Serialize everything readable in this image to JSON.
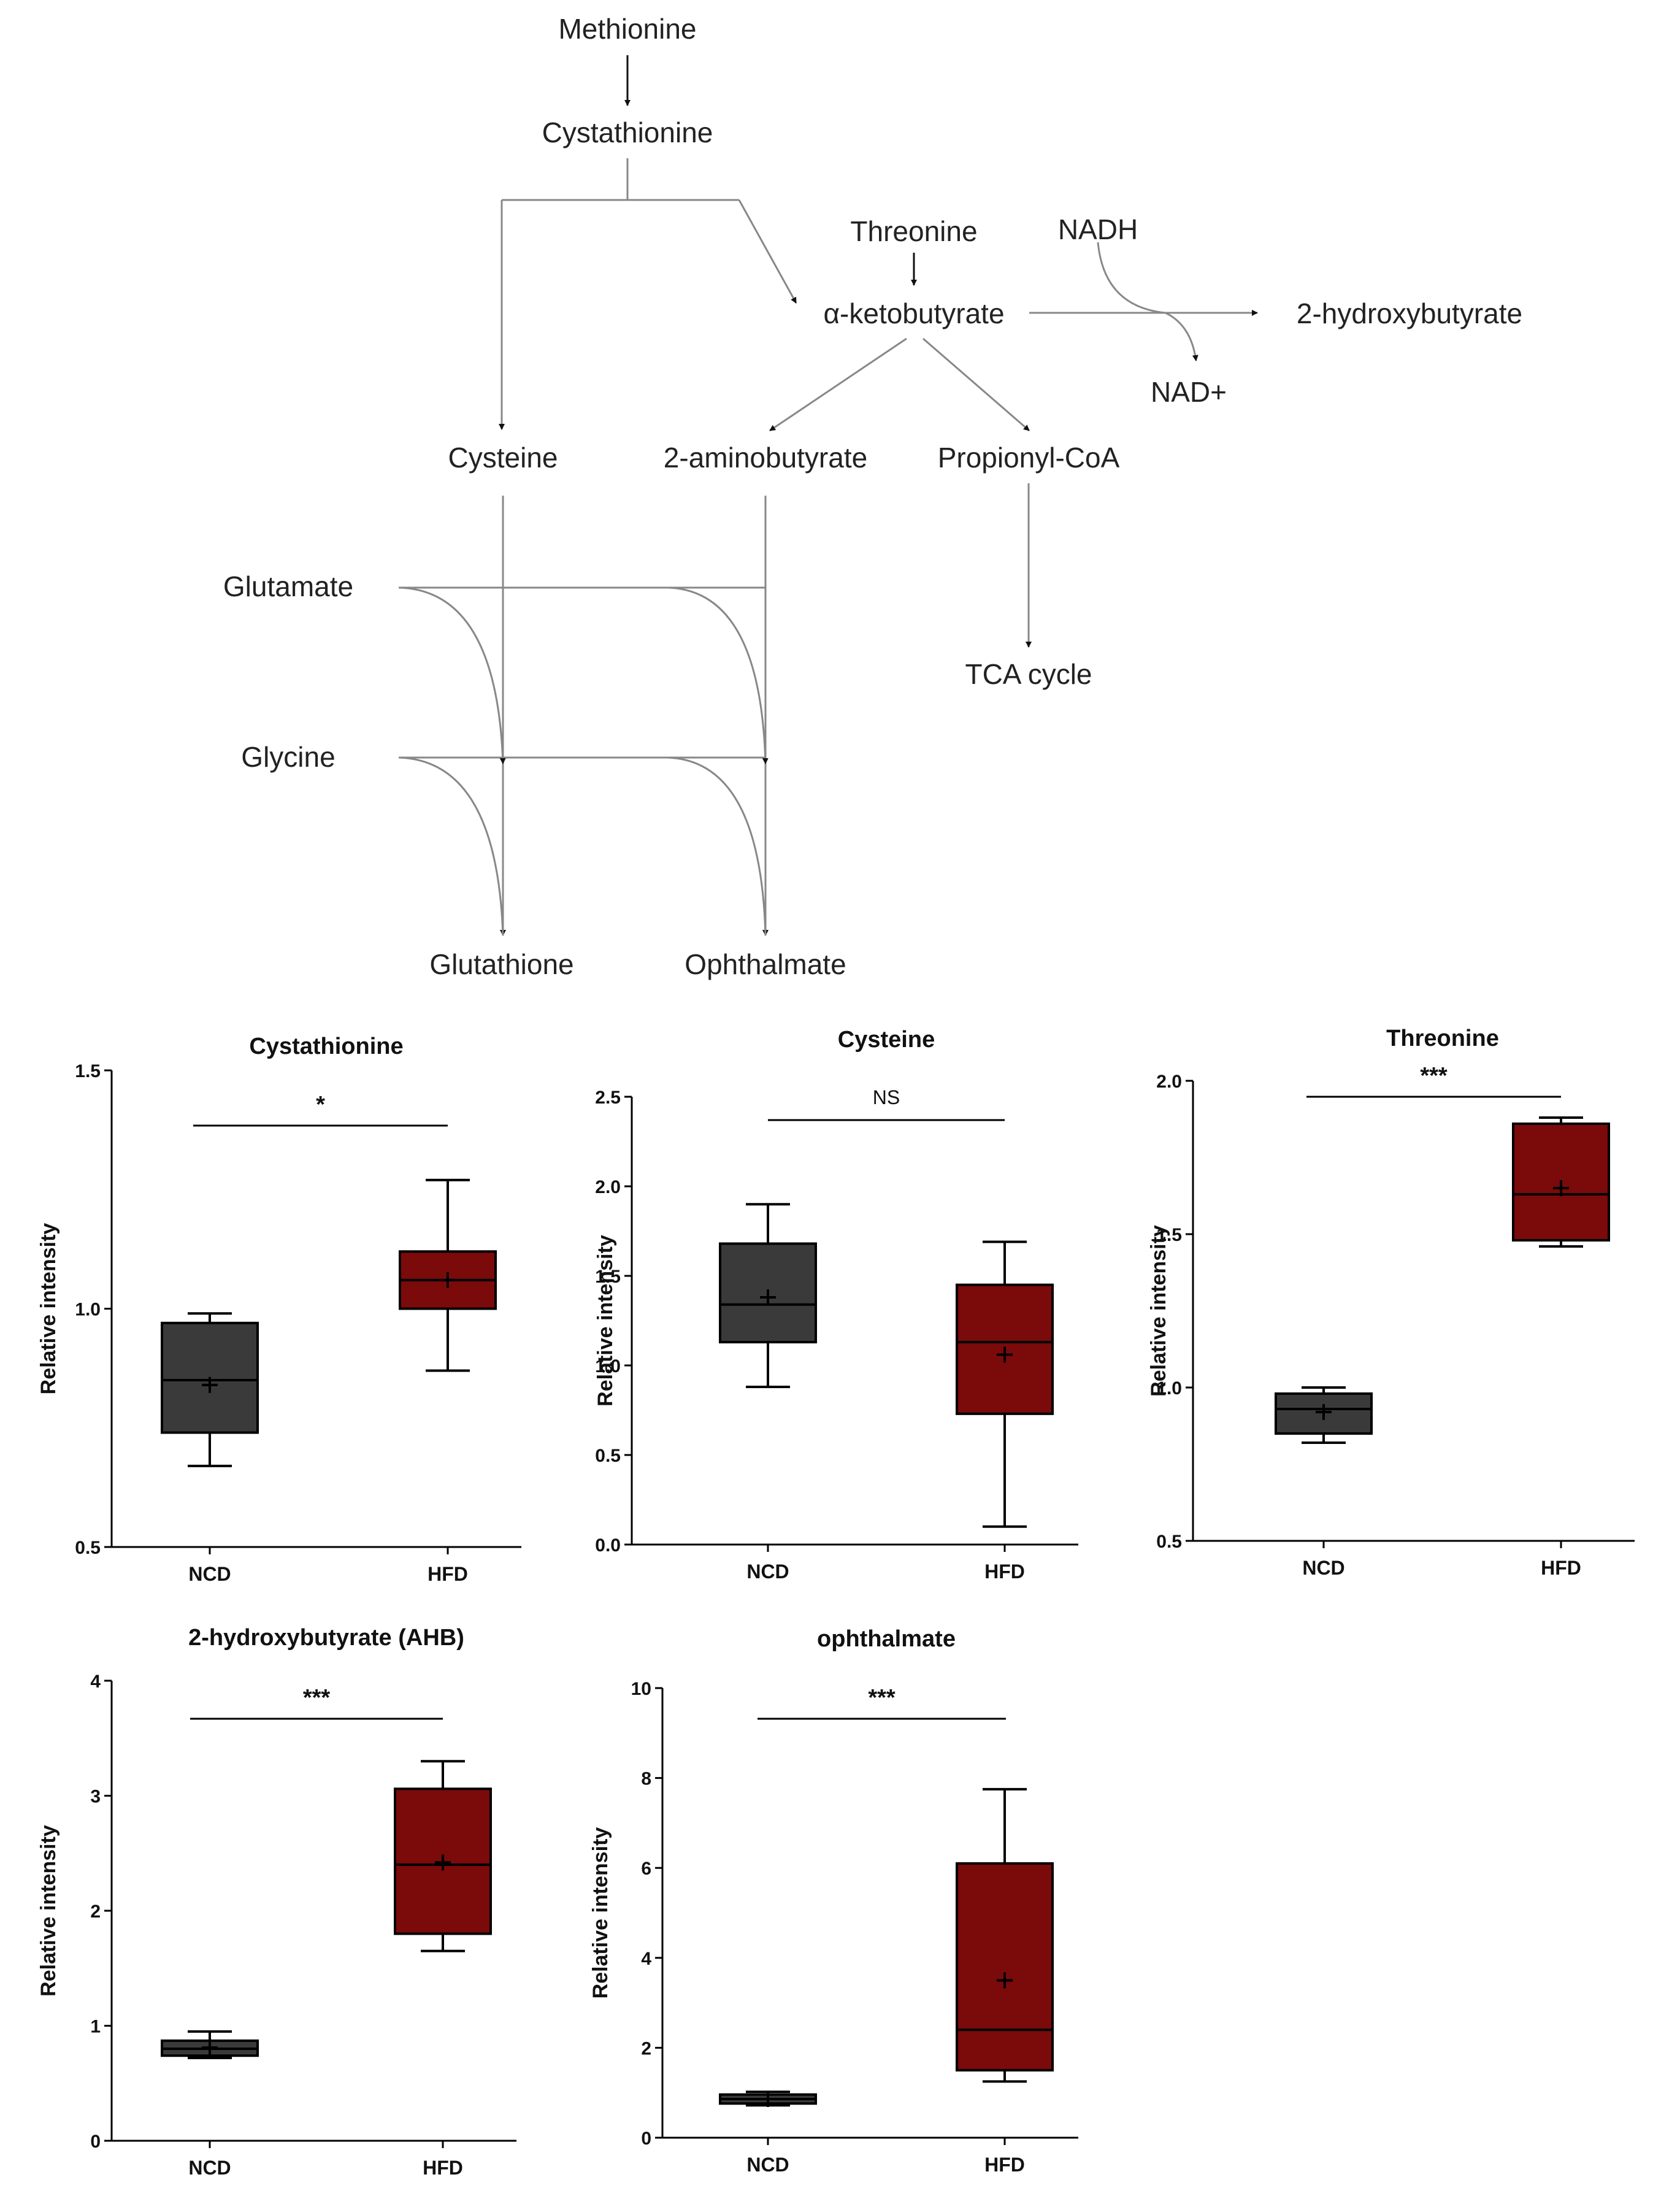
{
  "pathway": {
    "nodes": {
      "methionine": "Methionine",
      "cystathionine": "Cystathionine",
      "threonine": "Threonine",
      "nadh": "NADH",
      "ketobutyrate": "α-ketobutyrate",
      "hydroxybutyrate": "2-hydroxybutyrate",
      "nad": "NAD+",
      "cysteine": "Cysteine",
      "aminobutyrate": "2-aminobutyrate",
      "propionyl": "Propionyl-CoA",
      "glutamate": "Glutamate",
      "tca": "TCA cycle",
      "glycine": "Glycine",
      "glutathione": "Glutathione",
      "ophthalmate": "Ophthalmate"
    }
  },
  "colors": {
    "ncd": "#3a3a3a",
    "hfd": "#7b0a0a",
    "line": "#000000",
    "pathway_line": "#888888"
  },
  "chart_data": [
    {
      "type": "box",
      "title": "Cystathionine",
      "ylabel": "Relative intensity",
      "ylim": [
        0.5,
        1.5
      ],
      "yticks": [
        "0.5",
        "1.0",
        "1.5"
      ],
      "categories": [
        "NCD",
        "HFD"
      ],
      "significance": "*",
      "boxes": [
        {
          "min": 0.67,
          "q1": 0.74,
          "median": 0.85,
          "q3": 0.97,
          "max": 0.99,
          "mean": 0.84
        },
        {
          "min": 0.87,
          "q1": 1.0,
          "median": 1.06,
          "q3": 1.12,
          "max": 1.27,
          "mean": 1.06
        }
      ]
    },
    {
      "type": "box",
      "title": "Cysteine",
      "ylabel": "Relative intensity",
      "ylim": [
        0.0,
        2.5
      ],
      "yticks": [
        "0.0",
        "0.5",
        "1.0",
        "1.5",
        "2.0",
        "2.5"
      ],
      "categories": [
        "NCD",
        "HFD"
      ],
      "significance": "NS",
      "boxes": [
        {
          "min": 0.88,
          "q1": 1.13,
          "median": 1.34,
          "q3": 1.68,
          "max": 1.9,
          "mean": 1.38
        },
        {
          "min": 0.1,
          "q1": 0.73,
          "median": 1.13,
          "q3": 1.45,
          "max": 1.69,
          "mean": 1.06
        }
      ]
    },
    {
      "type": "box",
      "title": "Threonine",
      "ylabel": "Relative intensity",
      "ylim": [
        0.5,
        2.0
      ],
      "yticks": [
        "0.5",
        "1.0",
        "1.5",
        "2.0"
      ],
      "categories": [
        "NCD",
        "HFD"
      ],
      "significance": "***",
      "boxes": [
        {
          "min": 0.82,
          "q1": 0.85,
          "median": 0.93,
          "q3": 0.98,
          "max": 1.0,
          "mean": 0.92
        },
        {
          "min": 1.46,
          "q1": 1.48,
          "median": 1.63,
          "q3": 1.86,
          "max": 1.88,
          "mean": 1.65
        }
      ]
    },
    {
      "type": "box",
      "title": "2-hydroxybutyrate (AHB)",
      "ylabel": "Relative intensity",
      "ylim": [
        0,
        4
      ],
      "yticks": [
        "0",
        "1",
        "2",
        "3",
        "4"
      ],
      "categories": [
        "NCD",
        "HFD"
      ],
      "significance": "***",
      "boxes": [
        {
          "min": 0.72,
          "q1": 0.74,
          "median": 0.8,
          "q3": 0.87,
          "max": 0.95,
          "mean": 0.81
        },
        {
          "min": 1.65,
          "q1": 1.8,
          "median": 2.4,
          "q3": 3.06,
          "max": 3.3,
          "mean": 2.42
        }
      ]
    },
    {
      "type": "box",
      "title": "ophthalmate",
      "ylabel": "Relative intensity",
      "ylim": [
        0,
        10
      ],
      "yticks": [
        "0",
        "2",
        "4",
        "6",
        "8",
        "10"
      ],
      "categories": [
        "NCD",
        "HFD"
      ],
      "significance": "***",
      "boxes": [
        {
          "min": 0.72,
          "q1": 0.76,
          "median": 0.86,
          "q3": 0.96,
          "max": 1.02,
          "mean": 0.86
        },
        {
          "min": 1.25,
          "q1": 1.5,
          "median": 2.4,
          "q3": 6.1,
          "max": 7.75,
          "mean": 3.5
        }
      ]
    }
  ]
}
